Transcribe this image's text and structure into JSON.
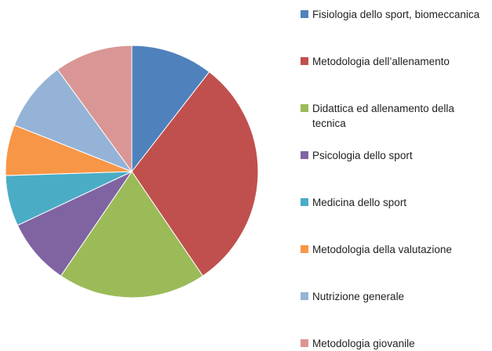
{
  "chart_data": {
    "type": "pie",
    "categories": [
      "Fisiologia dello sport, biomeccanica",
      "Metodologia dell’allenamento",
      "Didattica ed allenamento della tecnica",
      "Psicologia dello sport",
      "Medicina dello sport",
      "Metodologia della valutazione",
      "Nutrizione generale",
      "Metodologia giovanile"
    ],
    "values": [
      10.5,
      30,
      19,
      8.5,
      6.5,
      6.5,
      9,
      10
    ],
    "colors": [
      "#4f81bd",
      "#c0504d",
      "#9bbb59",
      "#8064a2",
      "#4bacc6",
      "#f79646",
      "#95b3d7",
      "#d99694"
    ],
    "legend": "right"
  }
}
